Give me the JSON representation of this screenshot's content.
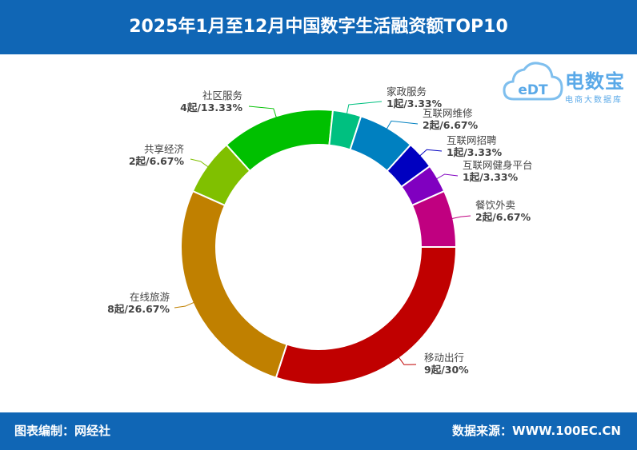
{
  "header": {
    "title": "2025年1月至12月中国数字生活融资额TOP10"
  },
  "footer": {
    "left": "图表编制：网经社",
    "right": "数据来源：WWW.100EC.CN"
  },
  "logo": {
    "text": "电数宝",
    "subtext": "电商大数据库",
    "badge": "eDT"
  },
  "colors": {
    "header_bg": "#1066b5"
  },
  "chart_data": {
    "type": "pie",
    "donut": true,
    "unit": "起",
    "title": "",
    "categories": [
      "移动出行",
      "在线旅游",
      "共享经济",
      "社区服务",
      "家政服务",
      "互联网维修",
      "互联网招聘",
      "互联网健身平台",
      "餐饮外卖"
    ],
    "values": [
      9,
      8,
      2,
      4,
      1,
      2,
      1,
      1,
      2
    ],
    "labels": [
      "9起/30%",
      "8起/26.67%",
      "2起/6.67%",
      "4起/13.33%",
      "1起/3.33%",
      "2起/6.67%",
      "1起/3.33%",
      "1起/3.33%",
      "2起/6.67%"
    ],
    "colors": [
      "#c00000",
      "#c08000",
      "#80c000",
      "#00c000",
      "#00c080",
      "#0080c0",
      "#0000c0",
      "#8000c0",
      "#c00080"
    ]
  }
}
